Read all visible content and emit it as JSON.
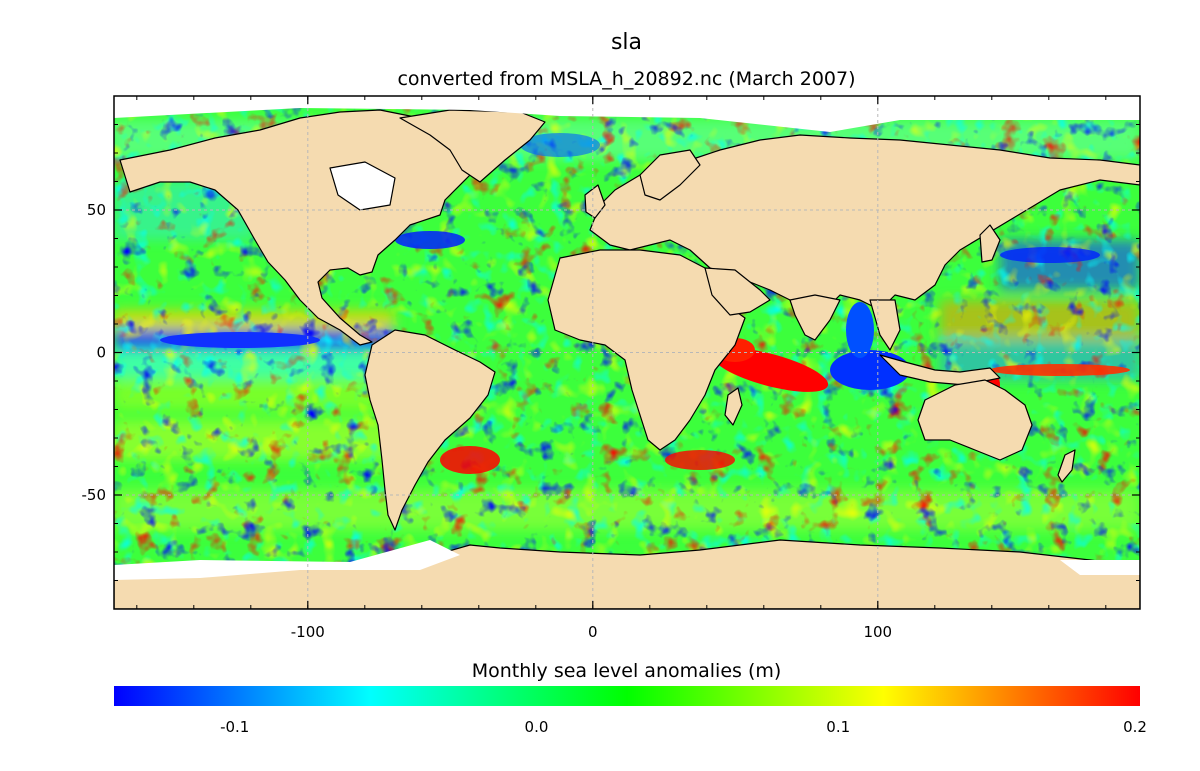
{
  "title": "sla",
  "subtitle": "converted from MSLA_h_20892.nc (March 2007)",
  "colorbar": {
    "label": "Monthly sea level anomalies (m)",
    "range": [
      -0.14,
      0.2
    ],
    "ticks": [
      {
        "value": -0.1,
        "label": "-0.1"
      },
      {
        "value": 0.0,
        "label": "0.0"
      },
      {
        "value": 0.1,
        "label": "0.1"
      },
      {
        "value": 0.2,
        "label": "0.2"
      }
    ],
    "colors": [
      "#0000ff",
      "#0080ff",
      "#00ffff",
      "#00ff80",
      "#00ff00",
      "#80ff00",
      "#ffff00",
      "#ff8000",
      "#ff0000"
    ]
  },
  "map": {
    "projection": "equirectangular",
    "lon_range": [
      -168,
      192
    ],
    "lat_range": [
      -90,
      90
    ],
    "grid": true,
    "land_color": "#f5dbb0",
    "ice_color": "#ffffff",
    "ocean_base_color": "#3cff3c",
    "x_ticks": [
      {
        "value": -100,
        "label": "-100"
      },
      {
        "value": 0,
        "label": "0"
      },
      {
        "value": 100,
        "label": "100"
      }
    ],
    "y_ticks": [
      {
        "value": 50,
        "label": "50"
      },
      {
        "value": 0,
        "label": "0"
      },
      {
        "value": -50,
        "label": "-50"
      }
    ]
  }
}
